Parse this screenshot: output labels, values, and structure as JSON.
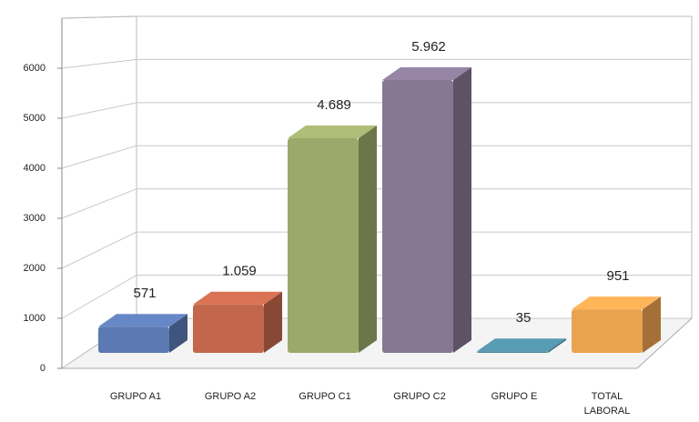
{
  "chart_data": {
    "type": "bar3d",
    "categories": [
      "GRUPO A1",
      "GRUPO A2",
      "GRUPO C1",
      "GRUPO C2",
      "GRUPO E",
      "TOTAL LABORAL"
    ],
    "values": [
      571,
      1059,
      4689,
      5962,
      35,
      951
    ],
    "value_labels": [
      "571",
      "1.059",
      "4.689",
      "5.962",
      "35",
      "951"
    ],
    "colors": [
      "#5b79b2",
      "#c2674b",
      "#9ba96b",
      "#867792",
      "#4f8aa1",
      "#e9a24f"
    ],
    "ylim": [
      0,
      7000
    ],
    "yticks": [
      0,
      1000,
      2000,
      3000,
      4000,
      5000,
      6000
    ],
    "grid": true
  }
}
